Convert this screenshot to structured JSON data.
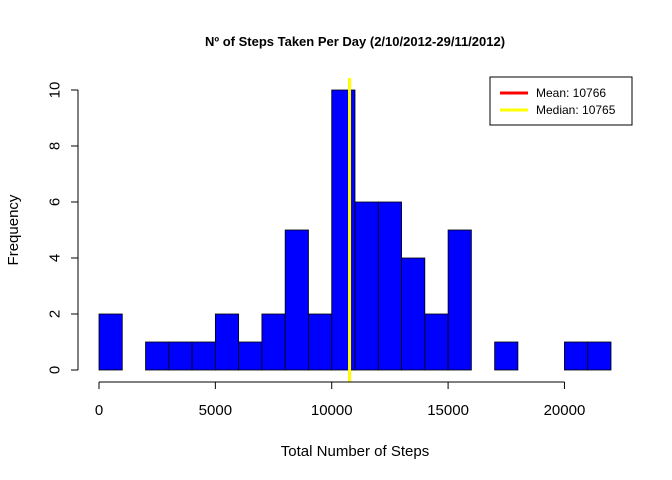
{
  "chart_data": {
    "type": "bar",
    "title": "Nº of Steps Taken Per Day (2/10/2012-29/11/2012)",
    "xlabel": "Total Number of Steps",
    "ylabel": "Frequency",
    "bin_width": 1000,
    "bins_start": [
      0,
      1000,
      2000,
      3000,
      4000,
      5000,
      6000,
      7000,
      8000,
      9000,
      10000,
      11000,
      12000,
      13000,
      14000,
      15000,
      16000,
      17000,
      18000,
      19000,
      20000,
      21000
    ],
    "values": [
      2,
      0,
      1,
      1,
      1,
      2,
      1,
      2,
      5,
      2,
      10,
      6,
      6,
      4,
      2,
      5,
      0,
      1,
      0,
      0,
      1,
      1
    ],
    "xlim": [
      0,
      22000
    ],
    "ylim": [
      0,
      10
    ],
    "x_ticks": [
      0,
      5000,
      10000,
      15000,
      20000
    ],
    "x_tick_labels": [
      "0",
      "5000",
      "10000",
      "15000",
      "20000"
    ],
    "y_ticks": [
      0,
      2,
      4,
      6,
      8,
      10
    ],
    "y_tick_labels": [
      "0",
      "2",
      "4",
      "6",
      "8",
      "10"
    ],
    "bar_color": "#0000ff",
    "grid": false,
    "reference_lines": [
      {
        "value": 10766,
        "color": "#ff0000"
      },
      {
        "value": 10765,
        "color": "#ffff00"
      }
    ],
    "legend": {
      "position": "top-right",
      "entries": [
        {
          "label": "Mean:  10766",
          "color": "#ff0000"
        },
        {
          "label": "Median:  10765",
          "color": "#ffff00"
        }
      ]
    }
  }
}
